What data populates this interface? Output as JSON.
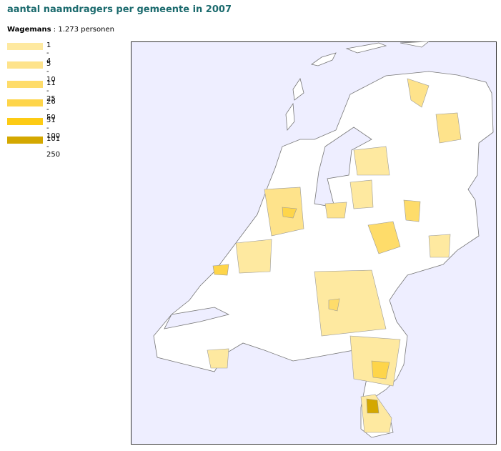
{
  "title": "aantal naamdragers per gemeente in 2007",
  "name": "Wagemans",
  "total": ": 1.273 personen",
  "legend": [
    {
      "label": "1 - 4",
      "color": "#fee9a0"
    },
    {
      "label": "5 - 10",
      "color": "#fee38b"
    },
    {
      "label": "11 - 25",
      "color": "#fedc6a"
    },
    {
      "label": "26 - 50",
      "color": "#fed54a"
    },
    {
      "label": "51 - 100",
      "color": "#fdcb14"
    },
    {
      "label": "101 - 250",
      "color": "#d4a800"
    }
  ]
}
